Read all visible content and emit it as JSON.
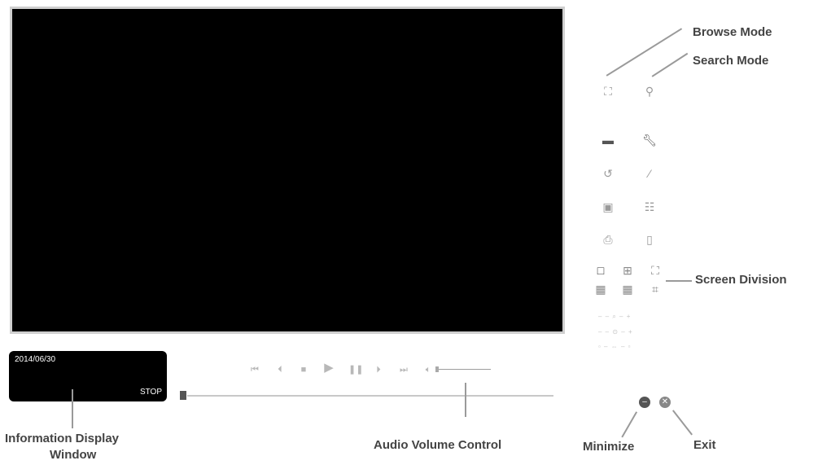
{
  "player": {
    "info_window": {
      "date": "2014/06/30",
      "status": "STOP"
    },
    "transport_icons": [
      "skip-to-start",
      "step-back",
      "stop",
      "play",
      "pause",
      "step-forward",
      "skip-to-end"
    ],
    "volume_icon": "speaker"
  },
  "toolbar": {
    "mode_icons": [
      "binoculars",
      "magnifier"
    ],
    "tool_icons": [
      "folder",
      "wrench",
      "rotate",
      "magic-wand",
      "snapshot",
      "film",
      "print",
      "document"
    ],
    "zoom_rows": [
      "– – ⌕ – +",
      "– – ⊙ – +",
      "▫ – ⇔ – ▫"
    ]
  },
  "screen_division": {
    "icons": [
      "single-view",
      "quad-view",
      "fullscreen",
      "nine-view",
      "sixteen-view",
      "exit-fullscreen"
    ]
  },
  "window_controls": {
    "icons": [
      "minimize",
      "exit"
    ]
  },
  "callouts": {
    "browse_mode": "Browse Mode",
    "search_mode": "Search Mode",
    "screen_division": "Screen Division",
    "information_display_line1": "Information Display",
    "information_display_line2": "Window",
    "audio_volume_control": "Audio Volume Control",
    "minimize": "Minimize",
    "exit": "Exit"
  }
}
